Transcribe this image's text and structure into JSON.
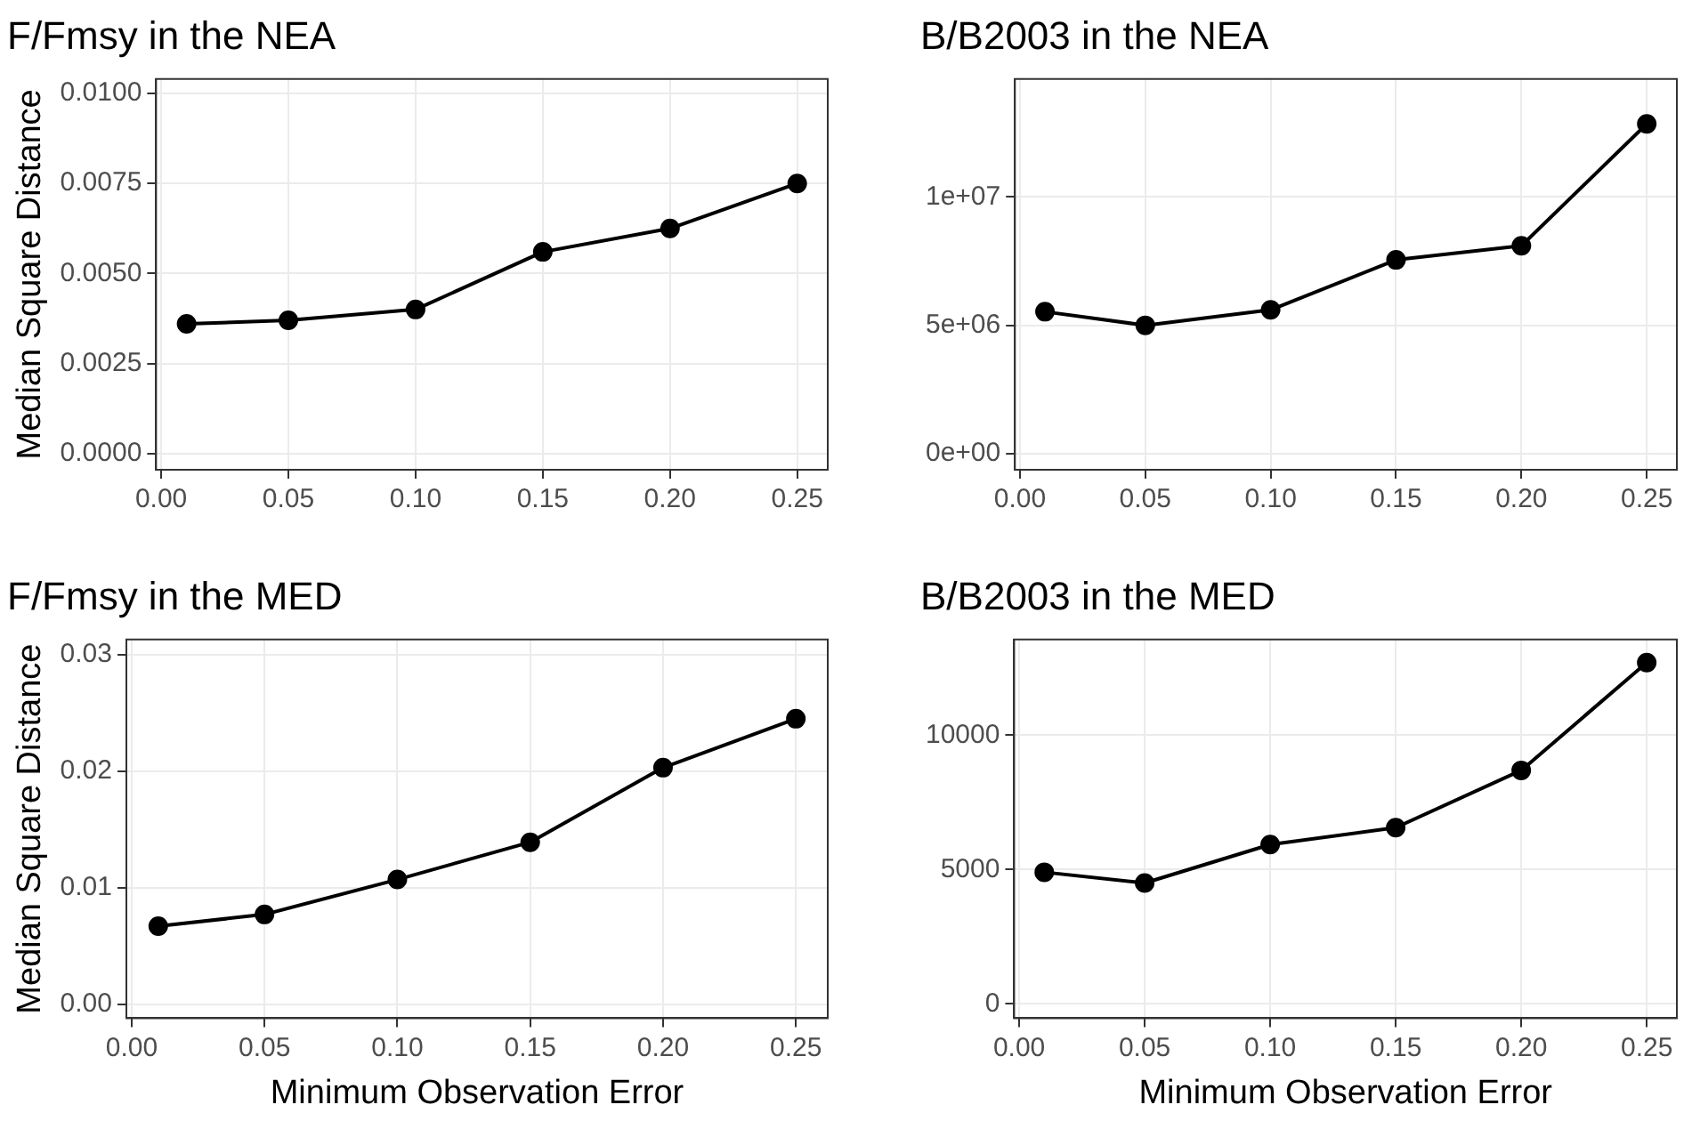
{
  "chart_data": [
    {
      "type": "line",
      "title": "F/Fmsy in the NEA",
      "ylabel": "Median Square Distance",
      "x": [
        0.01,
        0.05,
        0.1,
        0.15,
        0.2,
        0.25
      ],
      "series": [
        {
          "color": "#000000",
          "values": [
            0.0036,
            0.0037,
            0.004,
            0.0056,
            0.00625,
            0.0075
          ]
        }
      ],
      "xlim": [
        -0.002,
        0.262
      ],
      "xticks": [
        {
          "value": 0,
          "label": "0.00"
        },
        {
          "value": 0.05,
          "label": "0.05"
        },
        {
          "value": 0.1,
          "label": "0.10"
        },
        {
          "value": 0.15,
          "label": "0.15"
        },
        {
          "value": 0.2,
          "label": "0.20"
        },
        {
          "value": 0.25,
          "label": "0.25"
        }
      ],
      "ylim": [
        -0.00045,
        0.0104
      ],
      "yticks": [
        {
          "value": 0,
          "label": "0.0000"
        },
        {
          "value": 0.0025,
          "label": "0.0025"
        },
        {
          "value": 0.005,
          "label": "0.0050"
        },
        {
          "value": 0.0075,
          "label": "0.0075"
        },
        {
          "value": 0.01,
          "label": "0.0100"
        }
      ],
      "grid": true,
      "legend": false,
      "marker": "circle",
      "line_style": "solid"
    },
    {
      "type": "line",
      "title": "B/B2003 in the NEA",
      "x": [
        0.01,
        0.05,
        0.1,
        0.15,
        0.2,
        0.25
      ],
      "series": [
        {
          "color": "#000000",
          "values": [
            5530000,
            5000000,
            5600000,
            7550000,
            8100000,
            12850000
          ]
        }
      ],
      "xlim": [
        -0.002,
        0.262
      ],
      "xticks": [
        {
          "value": 0,
          "label": "0.00"
        },
        {
          "value": 0.05,
          "label": "0.05"
        },
        {
          "value": 0.1,
          "label": "0.10"
        },
        {
          "value": 0.15,
          "label": "0.15"
        },
        {
          "value": 0.2,
          "label": "0.20"
        },
        {
          "value": 0.25,
          "label": "0.25"
        }
      ],
      "ylim": [
        -630000,
        14600000
      ],
      "yticks": [
        {
          "value": 0,
          "label": "0e+00"
        },
        {
          "value": 5000000,
          "label": "5e+06"
        },
        {
          "value": 10000000,
          "label": "1e+07"
        }
      ],
      "grid": true,
      "legend": false,
      "marker": "circle",
      "line_style": "solid"
    },
    {
      "type": "line",
      "title": "F/Fmsy in the MED",
      "ylabel": "Median Square Distance",
      "xlabel": "Minimum Observation Error",
      "x": [
        0.01,
        0.05,
        0.1,
        0.15,
        0.2,
        0.25
      ],
      "series": [
        {
          "color": "#000000",
          "values": [
            0.0067,
            0.0077,
            0.0107,
            0.0139,
            0.0203,
            0.0245
          ]
        }
      ],
      "xlim": [
        -0.002,
        0.262
      ],
      "xticks": [
        {
          "value": 0,
          "label": "0.00"
        },
        {
          "value": 0.05,
          "label": "0.05"
        },
        {
          "value": 0.1,
          "label": "0.10"
        },
        {
          "value": 0.15,
          "label": "0.15"
        },
        {
          "value": 0.2,
          "label": "0.20"
        },
        {
          "value": 0.25,
          "label": "0.25"
        }
      ],
      "ylim": [
        -0.0012,
        0.0313
      ],
      "yticks": [
        {
          "value": 0,
          "label": "0.00"
        },
        {
          "value": 0.01,
          "label": "0.01"
        },
        {
          "value": 0.02,
          "label": "0.02"
        },
        {
          "value": 0.03,
          "label": "0.03"
        }
      ],
      "grid": true,
      "legend": false,
      "marker": "circle",
      "line_style": "solid"
    },
    {
      "type": "line",
      "title": "B/B2003 in the MED",
      "xlabel": "Minimum Observation Error",
      "x": [
        0.01,
        0.05,
        0.1,
        0.15,
        0.2,
        0.25
      ],
      "series": [
        {
          "color": "#000000",
          "values": [
            4900,
            4500,
            5930,
            6560,
            8690,
            12700
          ]
        }
      ],
      "xlim": [
        -0.002,
        0.262
      ],
      "xticks": [
        {
          "value": 0,
          "label": "0.00"
        },
        {
          "value": 0.05,
          "label": "0.05"
        },
        {
          "value": 0.1,
          "label": "0.10"
        },
        {
          "value": 0.15,
          "label": "0.15"
        },
        {
          "value": 0.2,
          "label": "0.20"
        },
        {
          "value": 0.25,
          "label": "0.25"
        }
      ],
      "ylim": [
        -530,
        13560
      ],
      "yticks": [
        0,
        5000,
        10000
      ],
      "grid": true,
      "legend": false,
      "marker": "circle",
      "line_style": "solid"
    }
  ]
}
